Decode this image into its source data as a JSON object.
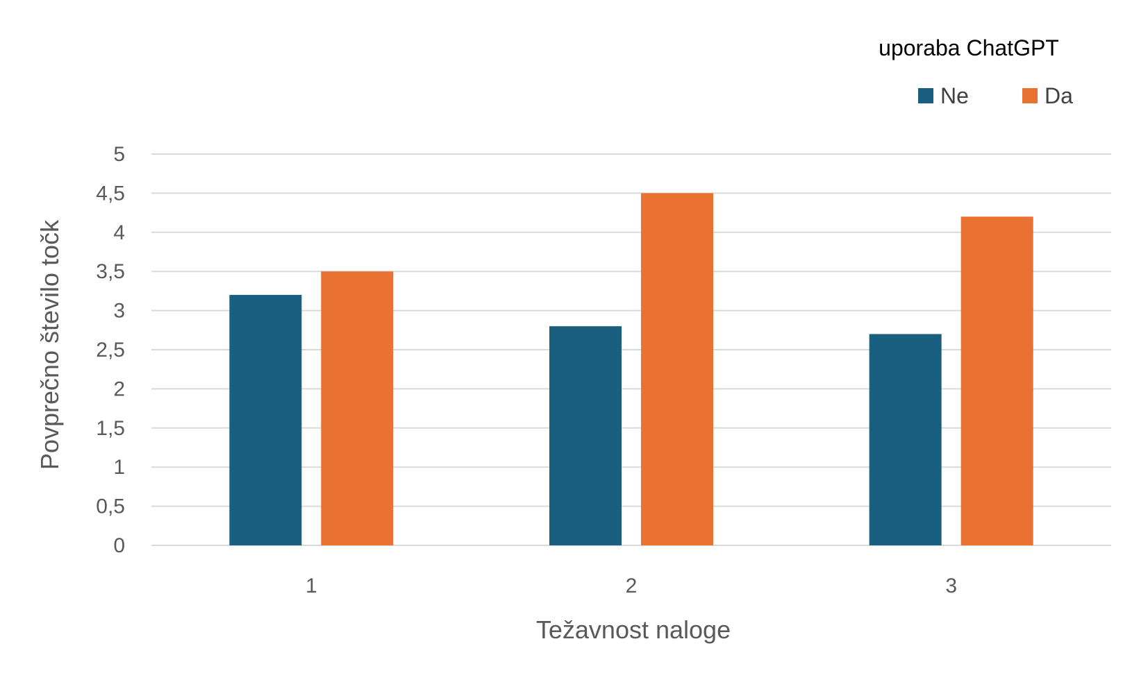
{
  "chart_data": {
    "type": "bar",
    "title": "",
    "xlabel": "Težavnost naloge",
    "ylabel": "Povprečno število točk",
    "categories": [
      "1",
      "2",
      "3"
    ],
    "series": [
      {
        "name": "Ne",
        "color": "#1a5e80",
        "values": [
          3.2,
          2.8,
          2.7
        ]
      },
      {
        "name": "Da",
        "color": "#e97132",
        "values": [
          3.5,
          4.5,
          4.2
        ]
      }
    ],
    "ylim": [
      0,
      5
    ],
    "yticks": [
      0,
      0.5,
      1,
      1.5,
      2,
      2.5,
      3,
      3.5,
      4,
      4.5,
      5
    ],
    "ytick_labels": [
      "0",
      "0,5",
      "1",
      "1,5",
      "2",
      "2,5",
      "3",
      "3,5",
      "4",
      "4,5",
      "5"
    ],
    "grid": true,
    "legend": {
      "title": "uporaba ChatGPT",
      "placement": "top-right"
    }
  }
}
